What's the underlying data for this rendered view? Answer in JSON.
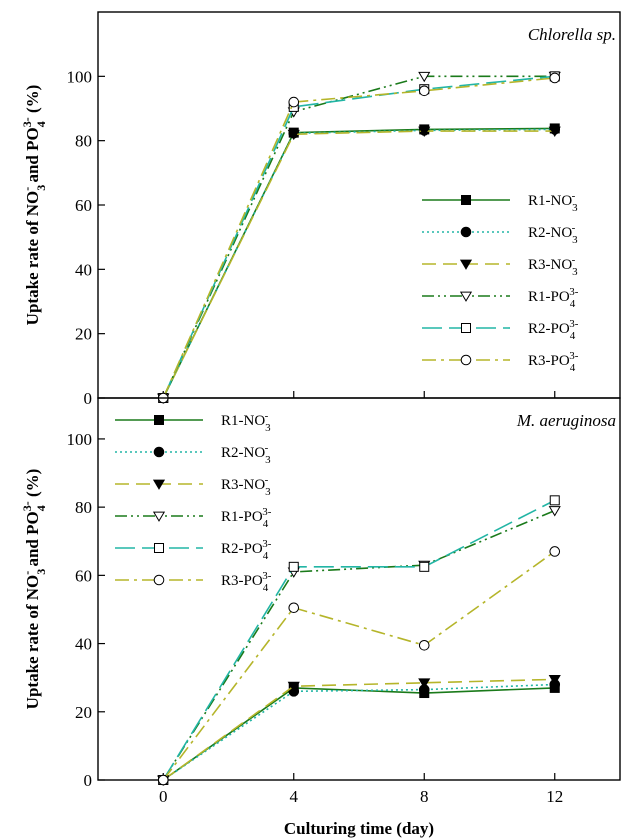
{
  "colors": {
    "dark_green": "#1a7a1a",
    "cyan": "#22b5a5",
    "olive": "#b5b52a"
  },
  "chart_data": [
    {
      "type": "line",
      "title": "Chlorella sp.",
      "xlabel": "",
      "ylabel": "Uptake rate of NO3- and PO43- (%)",
      "ylabel_parts": [
        "Uptake rate of NO",
        "3",
        "-",
        " and PO",
        "4",
        "3-",
        " (%)"
      ],
      "x": [
        0,
        4,
        8,
        12
      ],
      "xlim": [
        -2,
        14
      ],
      "ylim": [
        0,
        120
      ],
      "yticks": [
        0,
        20,
        40,
        60,
        80,
        100
      ],
      "legend_position": "bottom-right",
      "series": [
        {
          "name": "R1-NO3-",
          "name_parts": [
            "R1-NO",
            "3",
            "-"
          ],
          "values": [
            0,
            82.5,
            83.5,
            83.8
          ],
          "color": "#1a7a1a",
          "dash": "solid",
          "marker": "square-filled"
        },
        {
          "name": "R2-NO3-",
          "name_parts": [
            "R2-NO",
            "3",
            "-"
          ],
          "values": [
            0,
            82.3,
            83.2,
            83.5
          ],
          "color": "#22b5a5",
          "dash": "dotted",
          "marker": "circle-filled"
        },
        {
          "name": "R3-NO3-",
          "name_parts": [
            "R3-NO",
            "3",
            "-"
          ],
          "values": [
            0,
            82.0,
            83.0,
            83.0
          ],
          "color": "#b5b52a",
          "dash": "dashed",
          "marker": "triangle-down-filled"
        },
        {
          "name": "R1-PO43-",
          "name_parts": [
            "R1-PO",
            "4",
            "3-"
          ],
          "values": [
            0,
            89.0,
            100,
            100
          ],
          "color": "#1a7a1a",
          "dash": "dashdotdot",
          "marker": "triangle-down-open"
        },
        {
          "name": "R2-PO43-",
          "name_parts": [
            "R2-PO",
            "4",
            "3-"
          ],
          "values": [
            0,
            90.5,
            96.0,
            100
          ],
          "color": "#22b5a5",
          "dash": "longdash",
          "marker": "square-open"
        },
        {
          "name": "R3-PO43-",
          "name_parts": [
            "R3-PO",
            "4",
            "3-"
          ],
          "values": [
            0,
            92.0,
            95.5,
            99.5
          ],
          "color": "#b5b52a",
          "dash": "dashdot",
          "marker": "circle-open"
        }
      ]
    },
    {
      "type": "line",
      "title": "M. aeruginosa",
      "xlabel": "Culturing time (day)",
      "ylabel": "Uptake rate of NO3- and PO43- (%)",
      "ylabel_parts": [
        "Uptake rate of NO",
        "3",
        "-",
        " and PO",
        "4",
        "3-",
        " (%)"
      ],
      "x": [
        0,
        4,
        8,
        12
      ],
      "xlim": [
        -2,
        14
      ],
      "xticks": [
        0,
        4,
        8,
        12
      ],
      "ylim": [
        0,
        112
      ],
      "yticks": [
        0,
        20,
        40,
        60,
        80,
        100
      ],
      "legend_position": "top-left",
      "series": [
        {
          "name": "R1-NO3-",
          "name_parts": [
            "R1-NO",
            "3",
            "-"
          ],
          "values": [
            0,
            27.0,
            25.5,
            27.0
          ],
          "color": "#1a7a1a",
          "dash": "solid",
          "marker": "square-filled"
        },
        {
          "name": "R2-NO3-",
          "name_parts": [
            "R2-NO",
            "3",
            "-"
          ],
          "values": [
            0,
            26.0,
            26.5,
            28.0
          ],
          "color": "#22b5a5",
          "dash": "dotted",
          "marker": "circle-filled"
        },
        {
          "name": "R3-NO3-",
          "name_parts": [
            "R3-NO",
            "3",
            "-"
          ],
          "values": [
            0,
            27.5,
            28.5,
            29.5
          ],
          "color": "#b5b52a",
          "dash": "dashed",
          "marker": "triangle-down-filled"
        },
        {
          "name": "R1-PO43-",
          "name_parts": [
            "R1-PO",
            "4",
            "3-"
          ],
          "values": [
            0,
            61.0,
            63.0,
            79.0
          ],
          "color": "#1a7a1a",
          "dash": "dashdotdot",
          "marker": "triangle-down-open"
        },
        {
          "name": "R2-PO43-",
          "name_parts": [
            "R2-PO",
            "4",
            "3-"
          ],
          "values": [
            0,
            62.5,
            62.5,
            82.0
          ],
          "color": "#22b5a5",
          "dash": "longdash",
          "marker": "square-open"
        },
        {
          "name": "R3-PO43-",
          "name_parts": [
            "R3-PO",
            "4",
            "3-"
          ],
          "values": [
            0,
            50.5,
            39.5,
            67.0
          ],
          "color": "#b5b52a",
          "dash": "dashdot",
          "marker": "circle-open"
        }
      ]
    }
  ]
}
